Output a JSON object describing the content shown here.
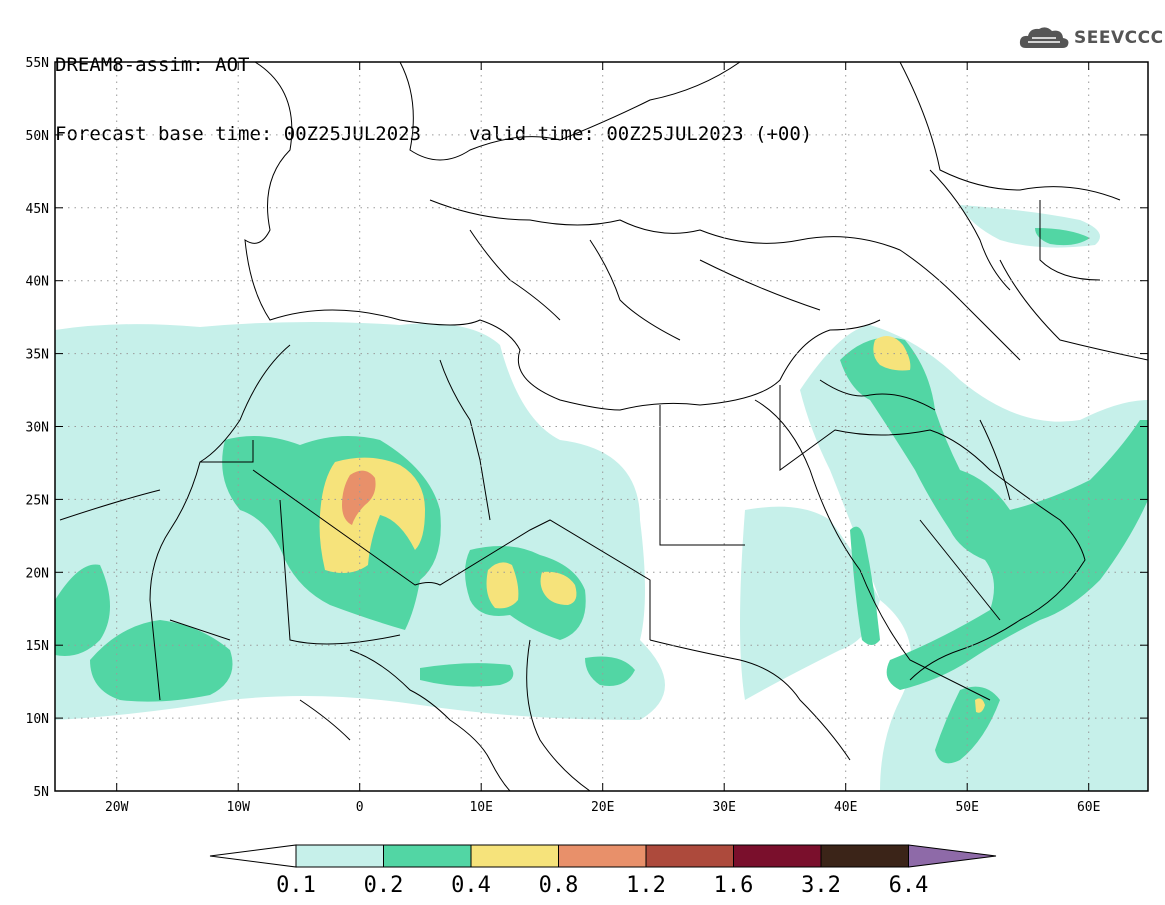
{
  "header": {
    "title": "DREAM8-assim: AOT",
    "base_time_label": "Forecast base time: 00Z25JUL2023",
    "valid_time_label": "valid time: 00Z25JUL2023 (+00)"
  },
  "logo": {
    "text": "SEEVCCC",
    "icon": "cloud-icon"
  },
  "map": {
    "lat_labels": [
      "55N",
      "50N",
      "45N",
      "40N",
      "35N",
      "30N",
      "25N",
      "20N",
      "15N",
      "10N",
      "5N"
    ],
    "lon_labels": [
      "20W",
      "10W",
      "0",
      "10E",
      "20E",
      "30E",
      "40E",
      "50E",
      "60E"
    ]
  },
  "colorbar": {
    "labels": [
      "0.1",
      "0.2",
      "0.4",
      "0.8",
      "1.2",
      "1.6",
      "3.2",
      "6.4"
    ],
    "colors": [
      "#c6f0ea",
      "#52d6a4",
      "#f6e37b",
      "#e8906a",
      "#ad4a3c",
      "#7a0f2c",
      "#3b2418",
      "#8e6aa8"
    ]
  },
  "palette": {
    "aot_0_1": "#c6f0ea",
    "aot_0_2": "#52d6a4",
    "aot_0_4": "#f6e37b",
    "aot_0_8": "#e8906a"
  }
}
